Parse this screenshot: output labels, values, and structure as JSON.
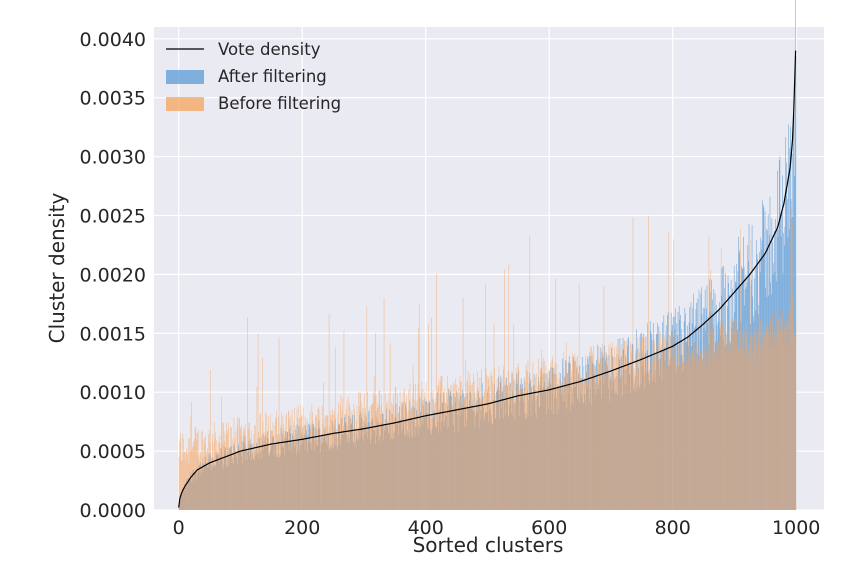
{
  "chart_data": {
    "type": "bar",
    "xlabel": "Sorted clusters",
    "ylabel": "Cluster density",
    "xlim": [
      -40,
      1045
    ],
    "ylim": [
      0,
      0.0041
    ],
    "xticks": [
      0,
      200,
      400,
      600,
      800,
      1000
    ],
    "xtick_labels": [
      "0",
      "200",
      "400",
      "600",
      "800",
      "1000"
    ],
    "yticks": [
      0,
      0.0005,
      0.001,
      0.0015,
      0.002,
      0.0025,
      0.003,
      0.0035,
      0.004
    ],
    "ytick_labels": [
      "0.0000",
      "0.0005",
      "0.0010",
      "0.0015",
      "0.0020",
      "0.0025",
      "0.0030",
      "0.0035",
      "0.0040"
    ],
    "grid": true,
    "legend": "top-left",
    "n_clusters": 1000,
    "series": [
      {
        "name": "Vote density",
        "kind": "line",
        "color": "#000000",
        "x": [
          0,
          2,
          5,
          10,
          20,
          30,
          40,
          50,
          75,
          100,
          150,
          200,
          250,
          300,
          350,
          400,
          450,
          500,
          550,
          600,
          650,
          700,
          750,
          800,
          825,
          850,
          875,
          900,
          925,
          950,
          970,
          980,
          990,
          995,
          999
        ],
        "values": [
          2e-05,
          0.0001,
          0.00015,
          0.0002,
          0.00028,
          0.00034,
          0.00037,
          0.0004,
          0.00045,
          0.0005,
          0.00056,
          0.0006,
          0.00065,
          0.00069,
          0.00074,
          0.0008,
          0.00085,
          0.0009,
          0.00097,
          0.00102,
          0.00109,
          0.00118,
          0.00128,
          0.00139,
          0.00147,
          0.00158,
          0.0017,
          0.00185,
          0.002,
          0.00218,
          0.0024,
          0.0026,
          0.0029,
          0.0032,
          0.0039
        ]
      },
      {
        "name": "After filtering",
        "kind": "bars",
        "color": "#5b9bd5"
      },
      {
        "name": "Before filtering",
        "kind": "bars",
        "color": "#f5a45e"
      }
    ]
  },
  "colors": {
    "plot_bg": "#eaeaf2",
    "grid": "#ffffff",
    "after": "#5b9bd5",
    "before": "#f5a45e",
    "overlap": "#c9aa98"
  }
}
